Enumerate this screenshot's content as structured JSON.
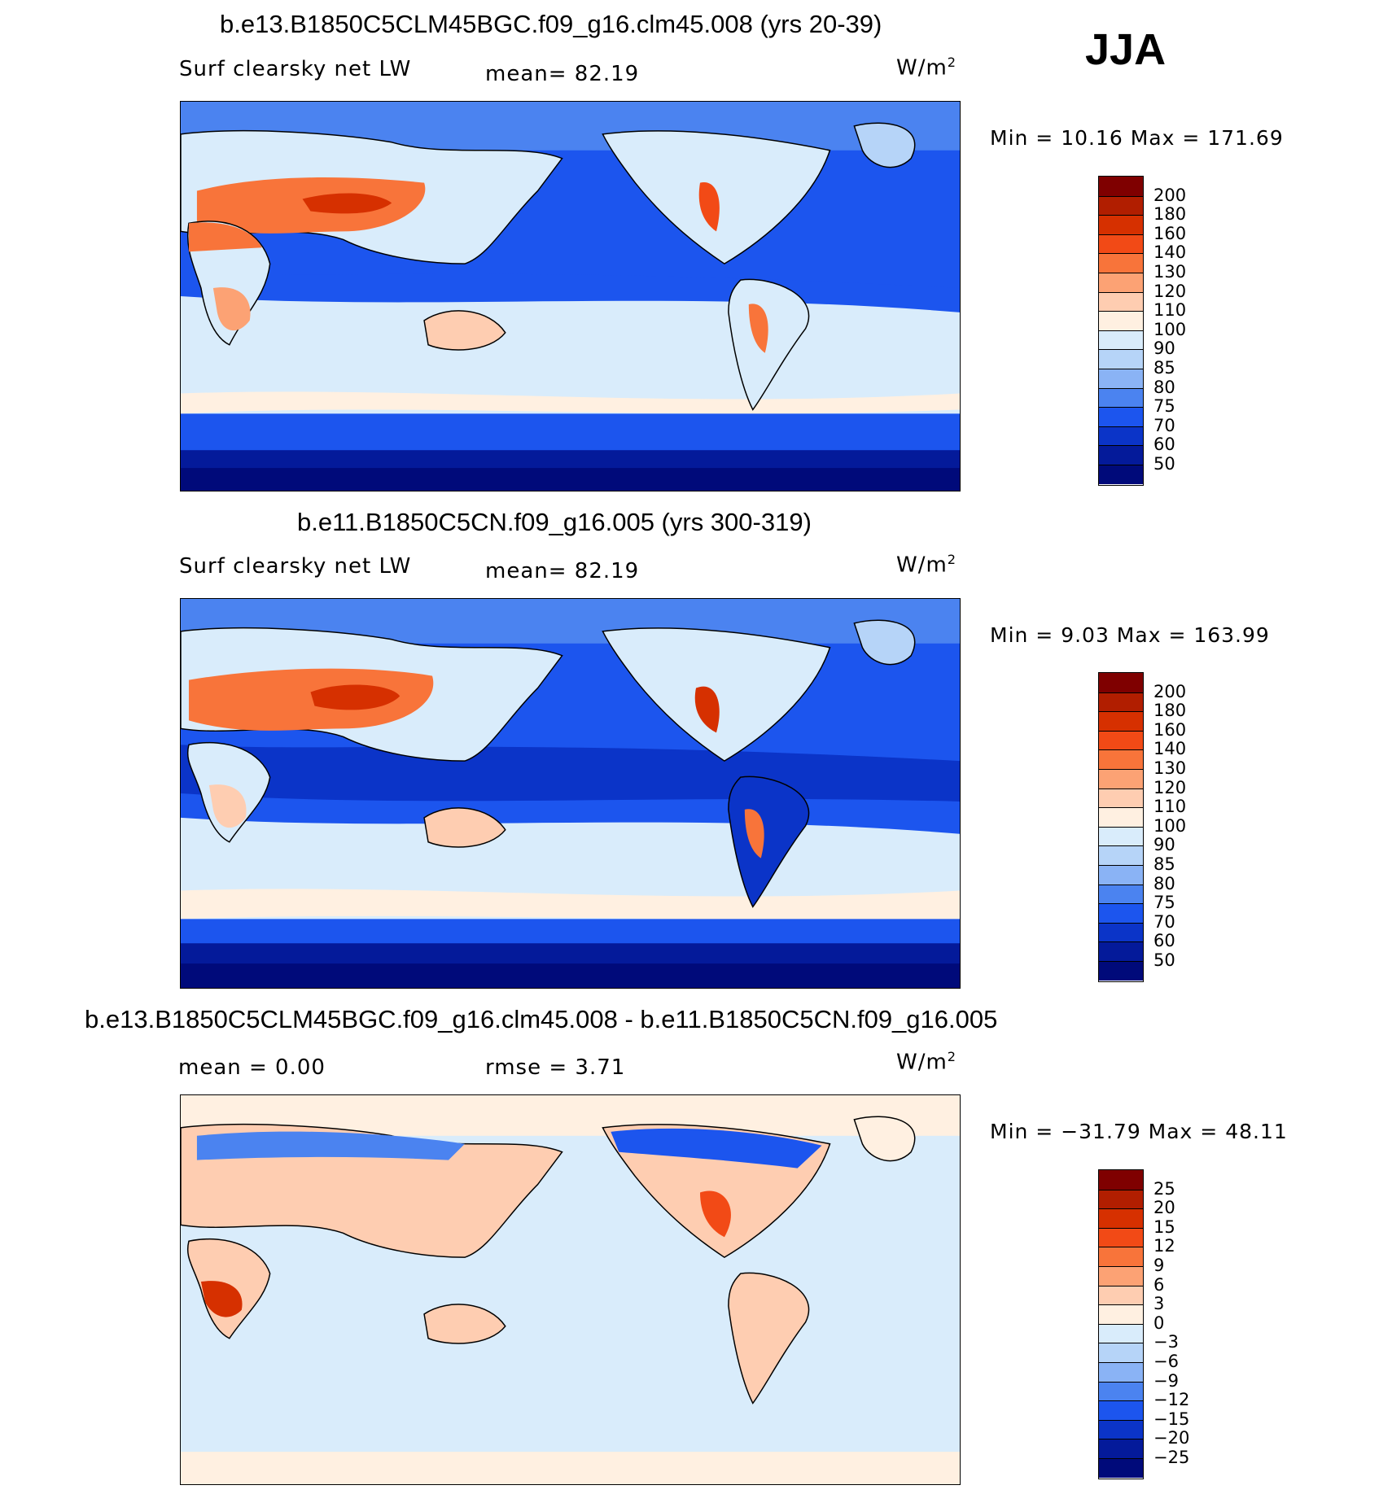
{
  "season": "JJA",
  "panels": [
    {
      "id": "case1",
      "title": "b.e13.B1850C5CLM45BGC.f09_g16.clm45.008 (yrs 20-39)",
      "variable": "Surf clearsky net LW",
      "mean_text": "mean=   82.19",
      "units_base": "W/m",
      "units_exp": "2",
      "minmax_text": "Min =   10.16 Max = 171.69",
      "colorbar": {
        "ticks": [
          "200",
          "180",
          "160",
          "140",
          "130",
          "120",
          "110",
          "100",
          "90",
          "85",
          "80",
          "75",
          "70",
          "60",
          "50"
        ],
        "colors": [
          "#7f0000",
          "#b11e00",
          "#d63000",
          "#f24a16",
          "#f8743a",
          "#fca274",
          "#fecdb1",
          "#fff0e1",
          "#d9ecfb",
          "#b6d4f8",
          "#8ab3f5",
          "#4b83f0",
          "#1c55ee",
          "#0b34c8",
          "#041a9a",
          "#000a7a"
        ]
      }
    },
    {
      "id": "case2",
      "title": "b.e11.B1850C5CN.f09_g16.005 (yrs 300-319)",
      "variable": "Surf clearsky net LW",
      "mean_text": "mean=   82.19",
      "units_base": "W/m",
      "units_exp": "2",
      "minmax_text": "Min =    9.03 Max = 163.99",
      "colorbar": {
        "ticks": [
          "200",
          "180",
          "160",
          "140",
          "130",
          "120",
          "110",
          "100",
          "90",
          "85",
          "80",
          "75",
          "70",
          "60",
          "50"
        ],
        "colors": [
          "#7f0000",
          "#b11e00",
          "#d63000",
          "#f24a16",
          "#f8743a",
          "#fca274",
          "#fecdb1",
          "#fff0e1",
          "#d9ecfb",
          "#b6d4f8",
          "#8ab3f5",
          "#4b83f0",
          "#1c55ee",
          "#0b34c8",
          "#041a9a",
          "#000a7a"
        ]
      }
    },
    {
      "id": "diff",
      "title": "b.e13.B1850C5CLM45BGC.f09_g16.clm45.008 - b.e11.B1850C5CN.f09_g16.005",
      "mean_text": "mean =    0.00",
      "rmse_text": "rmse =     3.71",
      "units_base": "W/m",
      "units_exp": "2",
      "minmax_text": "Min = −31.79 Max =   48.11",
      "colorbar": {
        "ticks": [
          "25",
          "20",
          "15",
          "12",
          "9",
          "6",
          "3",
          "0",
          "−3",
          "−6",
          "−9",
          "−12",
          "−15",
          "−20",
          "−25"
        ],
        "colors": [
          "#7f0000",
          "#b11e00",
          "#d63000",
          "#f24a16",
          "#f8743a",
          "#fca274",
          "#fecdb1",
          "#fff0e1",
          "#d9ecfb",
          "#b6d4f8",
          "#8ab3f5",
          "#4b83f0",
          "#1c55ee",
          "#0b34c8",
          "#041a9a",
          "#000a7a"
        ]
      }
    }
  ]
}
